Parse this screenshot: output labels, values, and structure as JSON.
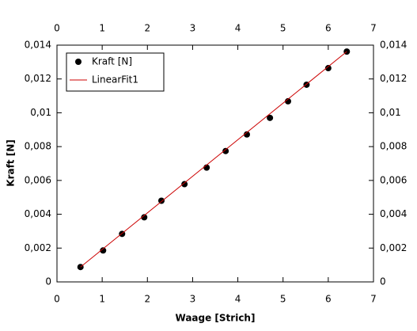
{
  "chart_data": {
    "type": "scatter",
    "xlabel": "Waage [Strich]",
    "ylabel": "Kraft [N]",
    "xlim": [
      0,
      7
    ],
    "xticks": [
      0,
      1,
      2,
      3,
      4,
      5,
      6,
      7
    ],
    "ylim": [
      0,
      0.014
    ],
    "yticks": [
      0,
      {
        "value": 0.002,
        "label": "0,002"
      },
      {
        "value": 0.004,
        "label": "0,004"
      },
      {
        "value": 0.006,
        "label": "0,006"
      },
      {
        "value": 0.008,
        "label": "0,008"
      },
      {
        "value": 0.01,
        "label": "0,01"
      },
      {
        "value": 0.012,
        "label": "0,012"
      },
      {
        "value": 0.014,
        "label": "0,014"
      }
    ],
    "legend": "upper left",
    "series": [
      {
        "name": "Kraft [N]",
        "color": "#000000",
        "mode": "markers",
        "x": [
          0.52,
          1.02,
          1.44,
          1.93,
          2.31,
          2.82,
          3.31,
          3.73,
          4.2,
          4.71,
          5.11,
          5.52,
          6.0,
          6.41
        ],
        "values": [
          0.00088,
          0.00186,
          0.00284,
          0.00382,
          0.0048,
          0.00578,
          0.00676,
          0.00774,
          0.00872,
          0.0097,
          0.01068,
          0.01166,
          0.01264,
          0.01362
        ]
      },
      {
        "name": "LinearFit1",
        "color": "#cc0000",
        "mode": "line",
        "x": [
          0.52,
          6.41
        ],
        "values": [
          0.00088,
          0.01362
        ]
      }
    ]
  }
}
